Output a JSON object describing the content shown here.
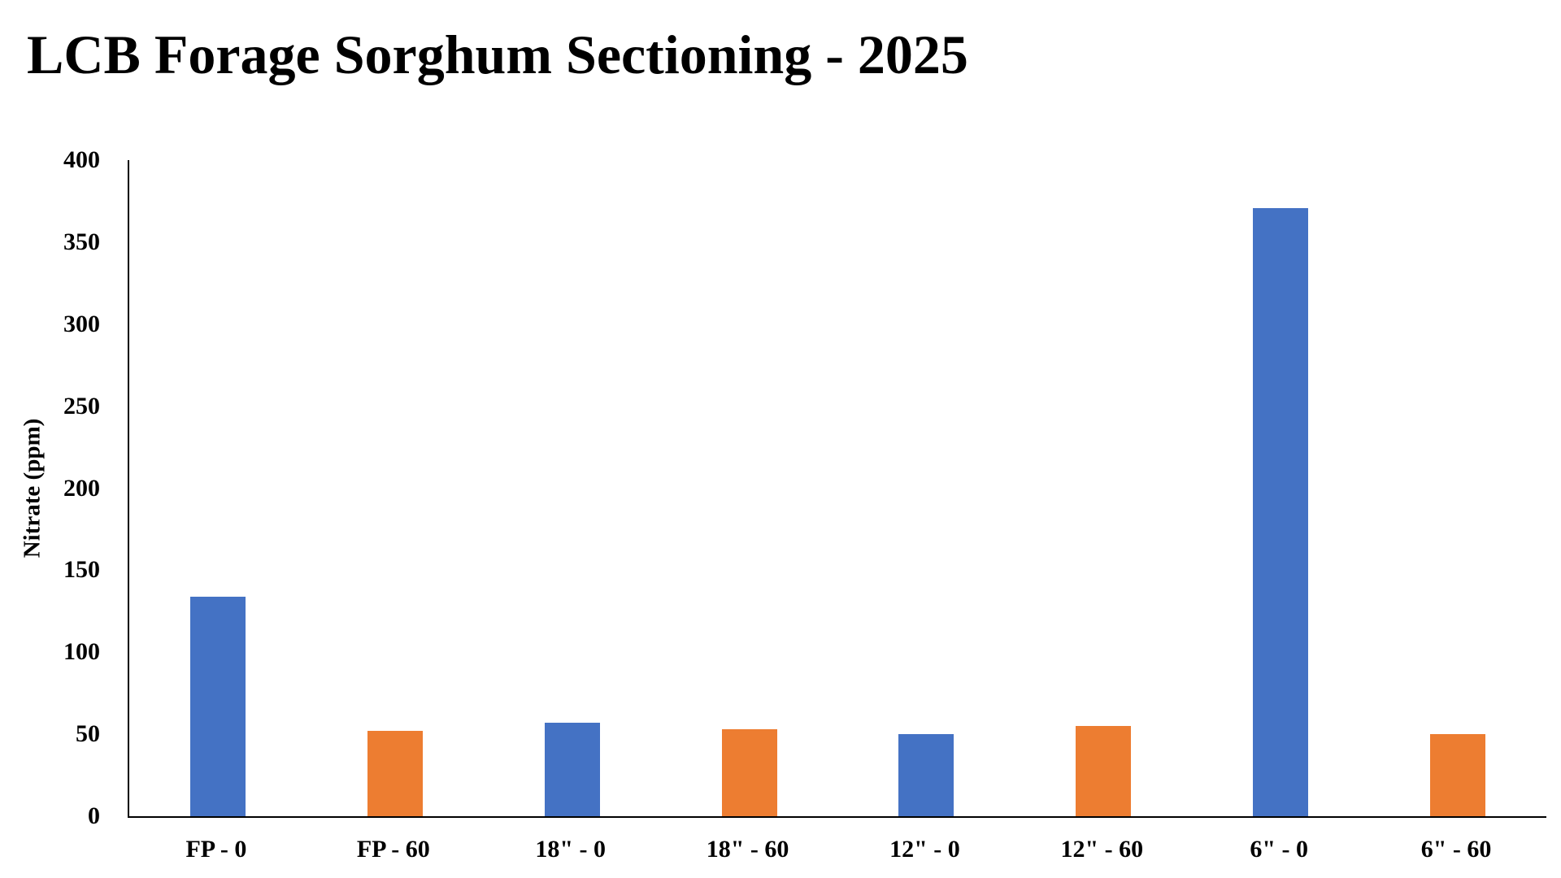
{
  "chart_data": {
    "type": "bar",
    "title": "LCB Forage Sorghum Sectioning - 2025",
    "ylabel": "Nitrate (ppm)",
    "xlabel": "",
    "categories": [
      "FP - 0",
      "FP - 60",
      "18\" - 0",
      "18\" - 60",
      "12\" - 0",
      "12\" - 60",
      "6\" - 0",
      "6\" - 60"
    ],
    "values": [
      134,
      52,
      57,
      53,
      50,
      55,
      371,
      50
    ],
    "bar_colors": [
      "#4472C4",
      "#ED7D31",
      "#4472C4",
      "#ED7D31",
      "#4472C4",
      "#ED7D31",
      "#4472C4",
      "#ED7D31"
    ],
    "palette": {
      "blue": "#4472C4",
      "orange": "#ED7D31"
    },
    "ylim": [
      0,
      400
    ],
    "y_ticks": [
      0,
      50,
      100,
      150,
      200,
      250,
      300,
      350,
      400
    ],
    "grid": "off",
    "legend": "none",
    "axis_color": "#000000"
  }
}
